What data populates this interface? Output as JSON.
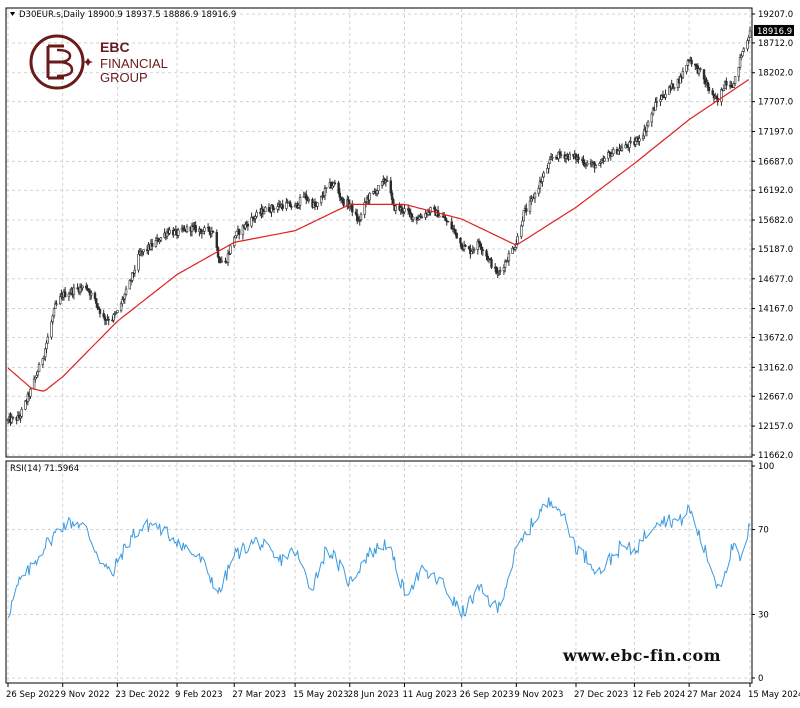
{
  "header": {
    "symbol_line": "D30EUR.s,Daily   18900.9  18937.5  18886.9  18916.9",
    "rsi_line": "RSI(14) 71.5964"
  },
  "logo": {
    "line1": "EBC",
    "line2": "FINANCIAL",
    "line3": "GROUP",
    "color": "#6b1a1a"
  },
  "watermark": "www.ebc-fin.com",
  "colors": {
    "candles": "#2b2b2b",
    "ma": "#e02020",
    "rsi": "#3b9ae0",
    "grid": "#c8c8c8",
    "last_price_bg": "#000000"
  },
  "chart_data": [
    {
      "type": "candlestick",
      "title": "D30EUR.s,Daily",
      "last_bar": {
        "open": 18900.9,
        "high": 18937.5,
        "low": 18886.9,
        "close": 18916.9
      },
      "current_price_label": "18916.9",
      "ylim": [
        11662.0,
        19207.0
      ],
      "y_ticks": [
        "19207.0",
        "18712.0",
        "18202.0",
        "17707.0",
        "17197.0",
        "16687.0",
        "16192.0",
        "15682.0",
        "15187.0",
        "14677.0",
        "14167.0",
        "13672.0",
        "13162.0",
        "12667.0",
        "12157.0",
        "11662.0"
      ],
      "x_tick_labels": [
        "26 Sep 2022",
        "9 Nov 2022",
        "23 Dec 2022",
        "9 Feb 2023",
        "27 Mar 2023",
        "15 May 2023",
        "28 Jun 2023",
        "11 Aug 2023",
        "26 Sep 2023",
        "9 Nov 2023",
        "27 Dec 2023",
        "12 Feb 2024",
        "27 Mar 2024",
        "15 May 2024"
      ],
      "price_keypoints": [
        [
          "26 Sep 2022",
          12250
        ],
        [
          "5 Oct 2022",
          12300
        ],
        [
          "15 Oct 2022",
          12800
        ],
        [
          "25 Oct 2022",
          13400
        ],
        [
          "3 Nov 2022",
          14200
        ],
        [
          "9 Nov 2022",
          14400
        ],
        [
          "20 Nov 2022",
          14500
        ],
        [
          "28 Nov 2022",
          14550
        ],
        [
          "5 Dec 2022",
          14300
        ],
        [
          "12 Dec 2022",
          14000
        ],
        [
          "19 Dec 2022",
          14000
        ],
        [
          "23 Dec 2022",
          14100
        ],
        [
          "2 Jan 2023",
          14600
        ],
        [
          "10 Jan 2023",
          15100
        ],
        [
          "20 Jan 2023",
          15250
        ],
        [
          "2 Feb 2023",
          15500
        ],
        [
          "9 Feb 2023",
          15450
        ],
        [
          "20 Feb 2023",
          15550
        ],
        [
          "1 Mar 2023",
          15500
        ],
        [
          "10 Mar 2023",
          15500
        ],
        [
          "15 Mar 2023",
          15000
        ],
        [
          "20 Mar 2023",
          14950
        ],
        [
          "27 Mar 2023",
          15400
        ],
        [
          "10 Apr 2023",
          15700
        ],
        [
          "20 Apr 2023",
          15850
        ],
        [
          "28 Apr 2023",
          15900
        ],
        [
          "8 May 2023",
          15950
        ],
        [
          "15 May 2023",
          15900
        ],
        [
          "22 May 2023",
          16100
        ],
        [
          "1 Jun 2023",
          15900
        ],
        [
          "10 Jun 2023",
          16250
        ],
        [
          "16 Jun 2023",
          16300
        ],
        [
          "22 Jun 2023",
          16000
        ],
        [
          "28 Jun 2023",
          15950
        ],
        [
          "5 Jul 2023",
          15650
        ],
        [
          "12 Jul 2023",
          16050
        ],
        [
          "20 Jul 2023",
          16200
        ],
        [
          "28 Jul 2023",
          16400
        ],
        [
          "2 Aug 2023",
          15900
        ],
        [
          "11 Aug 2023",
          15850
        ],
        [
          "20 Aug 2023",
          15700
        ],
        [
          "1 Sep 2023",
          15850
        ],
        [
          "10 Sep 2023",
          15750
        ],
        [
          "20 Sep 2023",
          15500
        ],
        [
          "26 Sep 2023",
          15250
        ],
        [
          "3 Oct 2023",
          15150
        ],
        [
          "10 Oct 2023",
          15300
        ],
        [
          "18 Oct 2023",
          15000
        ],
        [
          "25 Oct 2023",
          14750
        ],
        [
          "1 Nov 2023",
          15000
        ],
        [
          "9 Nov 2023",
          15300
        ],
        [
          "15 Nov 2023",
          15800
        ],
        [
          "20 Nov 2023",
          15950
        ],
        [
          "1 Dec 2023",
          16450
        ],
        [
          "8 Dec 2023",
          16750
        ],
        [
          "15 Dec 2023",
          16800
        ],
        [
          "27 Dec 2023",
          16750
        ],
        [
          "5 Jan 2024",
          16650
        ],
        [
          "15 Jan 2024",
          16600
        ],
        [
          "22 Jan 2024",
          16800
        ],
        [
          "1 Feb 2024",
          16900
        ],
        [
          "12 Feb 2024",
          17000
        ],
        [
          "20 Feb 2024",
          17200
        ],
        [
          "1 Mar 2024",
          17700
        ],
        [
          "10 Mar 2024",
          17900
        ],
        [
          "20 Mar 2024",
          18100
        ],
        [
          "27 Mar 2024",
          18450
        ],
        [
          "5 Apr 2024",
          18200
        ],
        [
          "15 Apr 2024",
          17800
        ],
        [
          "19 Apr 2024",
          17700
        ],
        [
          "25 Apr 2024",
          18050
        ],
        [
          "2 May 2024",
          18000
        ],
        [
          "8 May 2024",
          18500
        ],
        [
          "15 May 2024",
          18900
        ]
      ],
      "moving_average_keypoints": [
        [
          "26 Sep 2022",
          13150
        ],
        [
          "15 Oct 2022",
          12800
        ],
        [
          "25 Oct 2022",
          12750
        ],
        [
          "9 Nov 2022",
          13000
        ],
        [
          "23 Dec 2022",
          13950
        ],
        [
          "9 Feb 2023",
          14750
        ],
        [
          "27 Mar 2023",
          15300
        ],
        [
          "15 May 2023",
          15500
        ],
        [
          "28 Jun 2023",
          15950
        ],
        [
          "11 Aug 2023",
          15950
        ],
        [
          "26 Sep 2023",
          15700
        ],
        [
          "9 Nov 2023",
          15250
        ],
        [
          "27 Dec 2023",
          15900
        ],
        [
          "12 Feb 2024",
          16650
        ],
        [
          "27 Mar 2024",
          17400
        ],
        [
          "15 May 2024",
          18100
        ]
      ]
    },
    {
      "type": "line",
      "title": "RSI(14) 71.5964",
      "ylim": [
        0,
        100
      ],
      "y_ticks": [
        "100",
        "70",
        "30",
        "0"
      ],
      "last_value": 71.5964,
      "keypoints": [
        [
          "26 Sep 2022",
          30
        ],
        [
          "5 Oct 2022",
          45
        ],
        [
          "15 Oct 2022",
          52
        ],
        [
          "25 Oct 2022",
          62
        ],
        [
          "9 Nov 2022",
          72
        ],
        [
          "20 Nov 2022",
          74
        ],
        [
          "28 Nov 2022",
          70
        ],
        [
          "10 Dec 2022",
          55
        ],
        [
          "19 Dec 2022",
          48
        ],
        [
          "23 Dec 2022",
          55
        ],
        [
          "5 Jan 2023",
          68
        ],
        [
          "20 Jan 2023",
          73
        ],
        [
          "9 Feb 2023",
          65
        ],
        [
          "1 Mar 2023",
          55
        ],
        [
          "15 Mar 2023",
          40
        ],
        [
          "27 Mar 2023",
          58
        ],
        [
          "15 Apr 2023",
          65
        ],
        [
          "1 May 2023",
          55
        ],
        [
          "15 May 2023",
          60
        ],
        [
          "28 May 2023",
          42
        ],
        [
          "10 Jun 2023",
          62
        ],
        [
          "28 Jun 2023",
          45
        ],
        [
          "12 Jul 2023",
          58
        ],
        [
          "28 Jul 2023",
          64
        ],
        [
          "11 Aug 2023",
          40
        ],
        [
          "25 Aug 2023",
          50
        ],
        [
          "10 Sep 2023",
          45
        ],
        [
          "26 Sep 2023",
          30
        ],
        [
          "10 Oct 2023",
          42
        ],
        [
          "25 Oct 2023",
          32
        ],
        [
          "9 Nov 2023",
          60
        ],
        [
          "27 Nov 2023",
          78
        ],
        [
          "10 Dec 2023",
          85
        ],
        [
          "27 Dec 2023",
          62
        ],
        [
          "15 Jan 2024",
          50
        ],
        [
          "1 Feb 2024",
          62
        ],
        [
          "12 Feb 2024",
          60
        ],
        [
          "1 Mar 2024",
          75
        ],
        [
          "20 Mar 2024",
          74
        ],
        [
          "27 Mar 2024",
          80
        ],
        [
          "10 Apr 2024",
          58
        ],
        [
          "20 Apr 2024",
          42
        ],
        [
          "1 May 2024",
          62
        ],
        [
          "8 May 2024",
          55
        ],
        [
          "15 May 2024",
          72
        ]
      ]
    }
  ]
}
